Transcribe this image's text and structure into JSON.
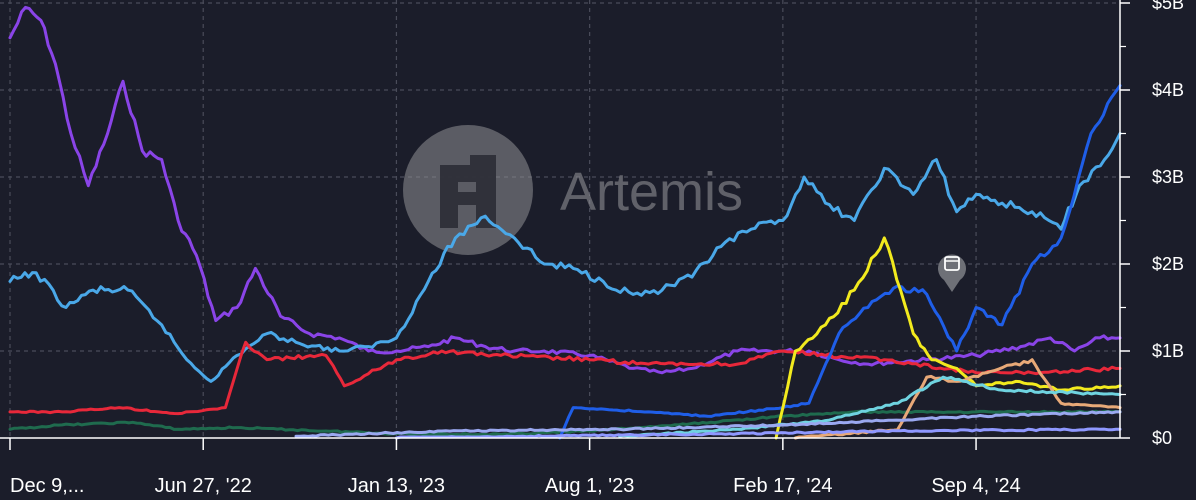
{
  "watermark": {
    "text": "Artemis"
  },
  "colors": {
    "background": "#1b1d2a",
    "grid": "#4a4c5a",
    "axis": "#ffffff"
  },
  "chart_data": {
    "type": "line",
    "ylim": [
      0,
      5000000000
    ],
    "y_ticks": [
      {
        "value": 0,
        "label": "$0"
      },
      {
        "value": 1000000000,
        "label": "$1B"
      },
      {
        "value": 2000000000,
        "label": "$2B"
      },
      {
        "value": 3000000000,
        "label": "$3B"
      },
      {
        "value": 4000000000,
        "label": "$4B"
      },
      {
        "value": 5000000000,
        "label": "$5B"
      }
    ],
    "x_ticks": [
      {
        "date": "2021-12-09",
        "label": "Dec 9,..."
      },
      {
        "date": "2022-06-27",
        "label": "Jun 27, '22"
      },
      {
        "date": "2023-01-13",
        "label": "Jan 13, '23"
      },
      {
        "date": "2023-08-01",
        "label": "Aug 1, '23"
      },
      {
        "date": "2024-02-17",
        "label": "Feb 17, '24"
      },
      {
        "date": "2024-09-04",
        "label": "Sep 4, '24"
      }
    ],
    "xlim": [
      "2021-12-09",
      "2025-01-31"
    ],
    "grid": true,
    "series": [
      {
        "color": "#8a44e8",
        "points": [
          [
            "2021-12-09",
            4600000000
          ],
          [
            "2021-12-25",
            4950000000
          ],
          [
            "2022-01-10",
            4800000000
          ],
          [
            "2022-01-25",
            4300000000
          ],
          [
            "2022-02-10",
            3500000000
          ],
          [
            "2022-02-28",
            2900000000
          ],
          [
            "2022-03-20",
            3500000000
          ],
          [
            "2022-04-05",
            4100000000
          ],
          [
            "2022-04-25",
            3300000000
          ],
          [
            "2022-05-15",
            3200000000
          ],
          [
            "2022-06-01",
            2500000000
          ],
          [
            "2022-06-20",
            2100000000
          ],
          [
            "2022-07-10",
            1350000000
          ],
          [
            "2022-08-01",
            1500000000
          ],
          [
            "2022-08-20",
            1950000000
          ],
          [
            "2022-09-15",
            1400000000
          ],
          [
            "2022-10-15",
            1200000000
          ],
          [
            "2022-11-15",
            1150000000
          ],
          [
            "2022-12-15",
            1000000000
          ],
          [
            "2023-01-13",
            1000000000
          ],
          [
            "2023-02-15",
            1050000000
          ],
          [
            "2023-03-15",
            1150000000
          ],
          [
            "2023-04-15",
            1050000000
          ],
          [
            "2023-05-15",
            1000000000
          ],
          [
            "2023-06-15",
            1000000000
          ],
          [
            "2023-08-01",
            950000000
          ],
          [
            "2023-09-15",
            800000000
          ],
          [
            "2023-10-15",
            750000000
          ],
          [
            "2023-11-15",
            800000000
          ],
          [
            "2024-01-01",
            1000000000
          ],
          [
            "2024-02-17",
            1000000000
          ],
          [
            "2024-03-15",
            1000000000
          ],
          [
            "2024-04-15",
            900000000
          ],
          [
            "2024-05-15",
            850000000
          ],
          [
            "2024-07-15",
            900000000
          ],
          [
            "2024-09-04",
            950000000
          ],
          [
            "2024-10-20",
            1050000000
          ],
          [
            "2024-11-20",
            1150000000
          ],
          [
            "2024-12-15",
            1000000000
          ],
          [
            "2025-01-10",
            1150000000
          ],
          [
            "2025-01-31",
            1150000000
          ]
        ]
      },
      {
        "color": "#4aa8e8",
        "points": [
          [
            "2021-12-09",
            1800000000
          ],
          [
            "2022-01-05",
            1900000000
          ],
          [
            "2022-02-05",
            1500000000
          ],
          [
            "2022-03-05",
            1700000000
          ],
          [
            "2022-04-10",
            1700000000
          ],
          [
            "2022-05-15",
            1300000000
          ],
          [
            "2022-06-10",
            900000000
          ],
          [
            "2022-07-05",
            650000000
          ],
          [
            "2022-08-01",
            950000000
          ],
          [
            "2022-09-01",
            1200000000
          ],
          [
            "2022-10-01",
            1100000000
          ],
          [
            "2022-11-15",
            1000000000
          ],
          [
            "2022-12-15",
            1050000000
          ],
          [
            "2023-01-13",
            1150000000
          ],
          [
            "2023-02-15",
            1800000000
          ],
          [
            "2023-03-15",
            2300000000
          ],
          [
            "2023-04-15",
            2550000000
          ],
          [
            "2023-05-15",
            2300000000
          ],
          [
            "2023-06-15",
            2000000000
          ],
          [
            "2023-07-15",
            1950000000
          ],
          [
            "2023-08-15",
            1800000000
          ],
          [
            "2023-09-15",
            1650000000
          ],
          [
            "2023-10-15",
            1700000000
          ],
          [
            "2023-11-15",
            1850000000
          ],
          [
            "2023-12-15",
            2200000000
          ],
          [
            "2024-01-15",
            2400000000
          ],
          [
            "2024-02-17",
            2500000000
          ],
          [
            "2024-03-10",
            3000000000
          ],
          [
            "2024-04-01",
            2700000000
          ],
          [
            "2024-05-01",
            2500000000
          ],
          [
            "2024-06-01",
            3100000000
          ],
          [
            "2024-07-01",
            2800000000
          ],
          [
            "2024-07-25",
            3200000000
          ],
          [
            "2024-08-15",
            2600000000
          ],
          [
            "2024-09-04",
            2800000000
          ],
          [
            "2024-10-01",
            2700000000
          ],
          [
            "2024-11-01",
            2600000000
          ],
          [
            "2024-12-01",
            2400000000
          ],
          [
            "2024-12-20",
            2900000000
          ],
          [
            "2025-01-15",
            3200000000
          ],
          [
            "2025-01-31",
            3500000000
          ]
        ]
      },
      {
        "color": "#e8283a",
        "points": [
          [
            "2021-12-09",
            300000000
          ],
          [
            "2022-02-01",
            300000000
          ],
          [
            "2022-04-01",
            350000000
          ],
          [
            "2022-06-01",
            280000000
          ],
          [
            "2022-07-20",
            350000000
          ],
          [
            "2022-08-10",
            1100000000
          ],
          [
            "2022-09-01",
            900000000
          ],
          [
            "2022-11-01",
            950000000
          ],
          [
            "2022-11-20",
            600000000
          ],
          [
            "2023-01-13",
            900000000
          ],
          [
            "2023-03-01",
            1000000000
          ],
          [
            "2023-05-01",
            950000000
          ],
          [
            "2023-08-01",
            900000000
          ],
          [
            "2023-10-01",
            850000000
          ],
          [
            "2024-01-01",
            850000000
          ],
          [
            "2024-02-17",
            1000000000
          ],
          [
            "2024-04-01",
            950000000
          ],
          [
            "2024-06-01",
            900000000
          ],
          [
            "2024-09-04",
            750000000
          ],
          [
            "2024-11-01",
            750000000
          ],
          [
            "2025-01-31",
            800000000
          ]
        ]
      },
      {
        "color": "#1f6b4e",
        "points": [
          [
            "2021-12-09",
            100000000
          ],
          [
            "2022-02-01",
            150000000
          ],
          [
            "2022-04-15",
            180000000
          ],
          [
            "2022-06-01",
            100000000
          ],
          [
            "2022-08-01",
            120000000
          ],
          [
            "2022-11-01",
            80000000
          ],
          [
            "2023-01-13",
            50000000
          ],
          [
            "2023-05-01",
            40000000
          ],
          [
            "2023-08-01",
            80000000
          ],
          [
            "2023-11-01",
            150000000
          ],
          [
            "2024-02-17",
            250000000
          ],
          [
            "2024-05-01",
            300000000
          ],
          [
            "2024-09-04",
            300000000
          ],
          [
            "2025-01-31",
            300000000
          ]
        ]
      },
      {
        "color": "#1f5ee8",
        "points": [
          [
            "2023-07-01",
            0
          ],
          [
            "2023-07-15",
            350000000
          ],
          [
            "2023-10-01",
            300000000
          ],
          [
            "2023-12-01",
            250000000
          ],
          [
            "2024-02-17",
            350000000
          ],
          [
            "2024-03-15",
            400000000
          ],
          [
            "2024-04-15",
            1200000000
          ],
          [
            "2024-05-15",
            1500000000
          ],
          [
            "2024-06-15",
            1750000000
          ],
          [
            "2024-07-15",
            1650000000
          ],
          [
            "2024-08-15",
            1000000000
          ],
          [
            "2024-09-04",
            1500000000
          ],
          [
            "2024-10-01",
            1300000000
          ],
          [
            "2024-11-01",
            2000000000
          ],
          [
            "2024-12-01",
            2300000000
          ],
          [
            "2025-01-01",
            3500000000
          ],
          [
            "2025-01-31",
            4050000000
          ]
        ]
      },
      {
        "color": "#f2ea1e",
        "points": [
          [
            "2024-02-10",
            0
          ],
          [
            "2024-03-01",
            1000000000
          ],
          [
            "2024-04-01",
            1300000000
          ],
          [
            "2024-05-01",
            1700000000
          ],
          [
            "2024-06-01",
            2300000000
          ],
          [
            "2024-07-01",
            1200000000
          ],
          [
            "2024-07-20",
            900000000
          ],
          [
            "2024-08-15",
            800000000
          ],
          [
            "2024-09-04",
            600000000
          ],
          [
            "2024-10-15",
            650000000
          ],
          [
            "2024-12-01",
            550000000
          ],
          [
            "2025-01-31",
            600000000
          ]
        ]
      },
      {
        "color": "#e8a978",
        "points": [
          [
            "2024-03-01",
            0
          ],
          [
            "2024-06-15",
            100000000
          ],
          [
            "2024-07-15",
            700000000
          ],
          [
            "2024-08-15",
            650000000
          ],
          [
            "2024-09-15",
            750000000
          ],
          [
            "2024-11-01",
            900000000
          ],
          [
            "2024-12-01",
            400000000
          ],
          [
            "2025-01-31",
            350000000
          ]
        ]
      },
      {
        "color": "#6fd3e0",
        "points": [
          [
            "2023-09-01",
            20000000
          ],
          [
            "2024-01-01",
            100000000
          ],
          [
            "2024-04-01",
            200000000
          ],
          [
            "2024-06-15",
            400000000
          ],
          [
            "2024-08-01",
            700000000
          ],
          [
            "2024-10-01",
            550000000
          ],
          [
            "2025-01-31",
            500000000
          ]
        ]
      },
      {
        "color": "#9aa8f0",
        "points": [
          [
            "2022-10-01",
            20000000
          ],
          [
            "2023-03-01",
            80000000
          ],
          [
            "2023-09-01",
            100000000
          ],
          [
            "2024-02-17",
            150000000
          ],
          [
            "2024-06-01",
            200000000
          ],
          [
            "2024-09-04",
            250000000
          ],
          [
            "2025-01-31",
            300000000
          ]
        ]
      },
      {
        "color": "#8f98ff",
        "points": [
          [
            "2023-01-13",
            0
          ],
          [
            "2023-06-01",
            20000000
          ],
          [
            "2024-01-01",
            50000000
          ],
          [
            "2024-06-01",
            80000000
          ],
          [
            "2025-01-31",
            100000000
          ]
        ]
      }
    ]
  }
}
